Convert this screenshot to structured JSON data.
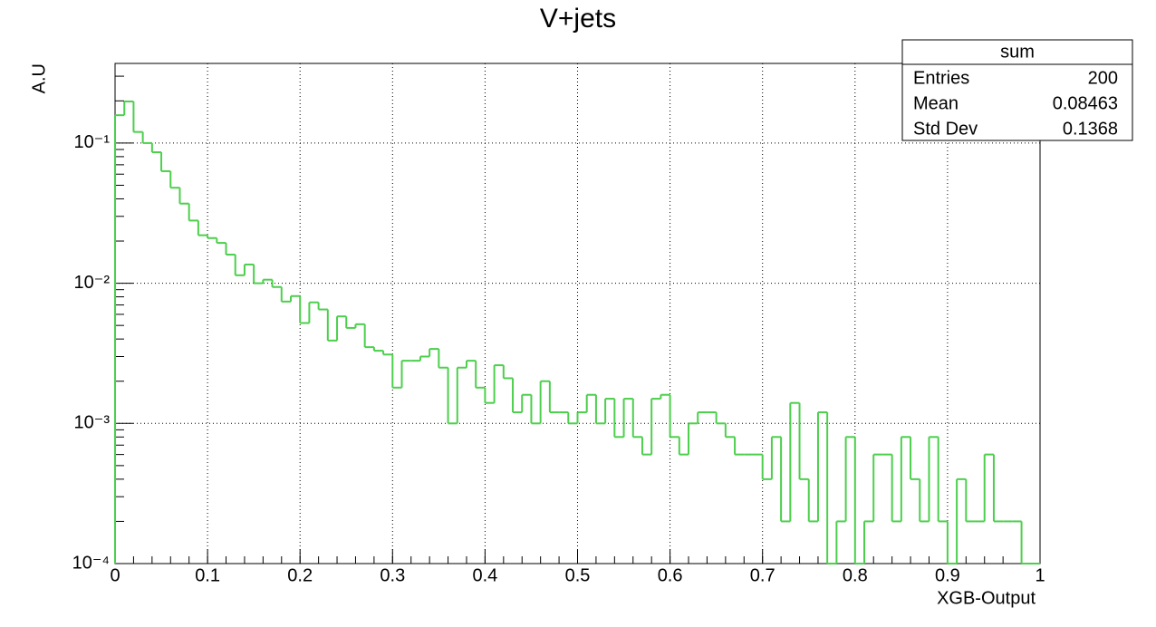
{
  "chart_data": {
    "type": "histogram",
    "title": "V+jets",
    "x_label": "XGB-Output",
    "y_label": "A.U",
    "color": "#4ccf4c",
    "log_y": true,
    "grid": true,
    "bins": [
      0,
      0.01,
      0.02,
      0.03,
      0.04,
      0.05,
      0.06,
      0.07,
      0.08,
      0.09,
      0.1,
      0.11,
      0.12,
      0.13,
      0.14,
      0.15,
      0.16,
      0.17,
      0.18,
      0.19,
      0.2,
      0.21,
      0.22,
      0.23,
      0.24,
      0.25,
      0.26,
      0.27,
      0.28,
      0.29,
      0.3,
      0.31,
      0.32,
      0.33,
      0.34,
      0.35,
      0.36,
      0.37,
      0.38,
      0.39,
      0.4,
      0.41,
      0.42,
      0.43,
      0.44,
      0.45,
      0.46,
      0.47,
      0.48,
      0.49,
      0.5,
      0.51,
      0.52,
      0.53,
      0.54,
      0.55,
      0.56,
      0.57,
      0.58,
      0.59,
      0.6,
      0.61,
      0.62,
      0.63,
      0.64,
      0.65,
      0.66,
      0.67,
      0.68,
      0.69,
      0.7,
      0.71,
      0.72,
      0.73,
      0.74,
      0.75,
      0.76,
      0.77,
      0.78,
      0.79,
      0.8,
      0.81,
      0.82,
      0.83,
      0.84,
      0.85,
      0.86,
      0.87,
      0.88,
      0.89,
      0.9,
      0.91,
      0.92,
      0.93,
      0.94,
      0.95,
      0.96,
      0.97,
      0.98,
      0.99,
      1
    ],
    "values": [
      0.158,
      0.198,
      0.12,
      0.1,
      0.086,
      0.063,
      0.048,
      0.037,
      0.028,
      0.022,
      0.021,
      0.0194,
      0.016,
      0.0114,
      0.0136,
      0.01,
      0.0106,
      0.0094,
      0.0074,
      0.0081,
      0.0052,
      0.0073,
      0.0065,
      0.0039,
      0.0058,
      0.0048,
      0.0051,
      0.0035,
      0.0033,
      0.0031,
      0.0018,
      0.0028,
      0.0028,
      0.003,
      0.0034,
      0.0025,
      0.001,
      0.0025,
      0.0028,
      0.0018,
      0.0014,
      0.0026,
      0.0021,
      0.0012,
      0.0016,
      0.001,
      0.002,
      0.0012,
      0.0012,
      0.001,
      0.0012,
      0.0016,
      0.001,
      0.0015,
      0.0008,
      0.0015,
      0.0008,
      0.0006,
      0.0015,
      0.0016,
      0.0008,
      0.0006,
      0.001,
      0.0012,
      0.0012,
      0.001,
      0.0008,
      0.0006,
      0.0006,
      0.0006,
      0.0004,
      0.0008,
      0.0002,
      0.0014,
      0.0004,
      0.0002,
      0.0012,
      0,
      0.0002,
      0.0008,
      0,
      0.0002,
      0.0006,
      0.0006,
      0.0002,
      0.0008,
      0.0004,
      0.0002,
      0.0008,
      0.0002,
      0,
      0.0004,
      0.0002,
      0.0002,
      0.0006,
      0.0002,
      0.0002,
      0.0002,
      0,
      0
    ],
    "xlim": [
      0,
      1
    ],
    "xticks": [
      0,
      0.1,
      0.2,
      0.3,
      0.4,
      0.5,
      0.6,
      0.7,
      0.8,
      0.9,
      1
    ],
    "ylim": [
      0.0001,
      0.37
    ],
    "yticks": [
      {
        "value": 0.0001,
        "label": "10⁻⁴"
      },
      {
        "value": 0.001,
        "label": "10⁻³"
      },
      {
        "value": 0.01,
        "label": "10⁻²"
      },
      {
        "value": 0.1,
        "label": "10⁻¹"
      }
    ],
    "stats": {
      "title": "sum",
      "rows": [
        [
          "Entries",
          "200"
        ],
        [
          "Mean",
          "0.08463"
        ],
        [
          "Std Dev",
          "0.1368"
        ]
      ]
    }
  }
}
